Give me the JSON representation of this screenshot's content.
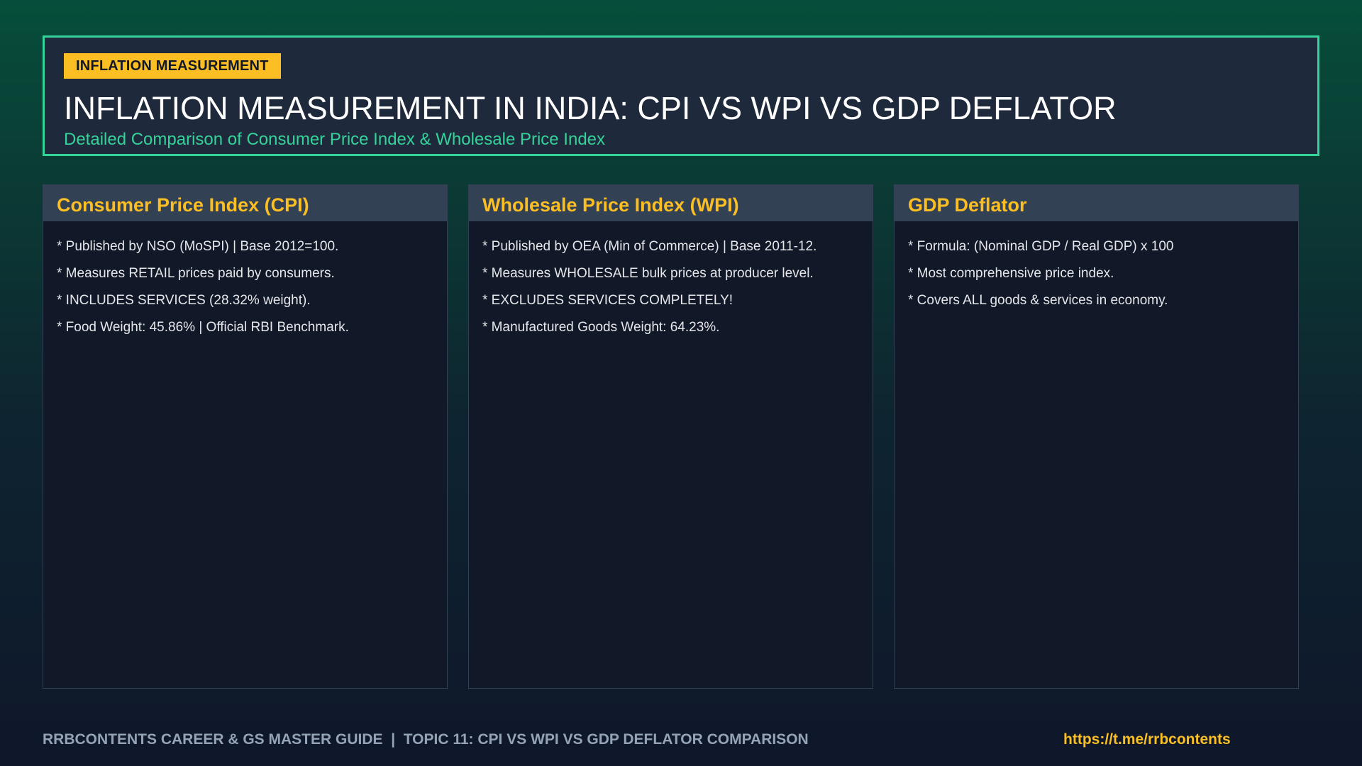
{
  "header": {
    "tag": "INFLATION MEASUREMENT",
    "title": "INFLATION MEASUREMENT IN INDIA: CPI VS WPI VS GDP DEFLATOR",
    "subtitle": "Detailed Comparison of Consumer Price Index & Wholesale Price Index"
  },
  "cards": [
    {
      "title": "Consumer Price Index (CPI)",
      "points": [
        "* Published by NSO (MoSPI) | Base 2012=100.",
        "* Measures RETAIL prices paid by consumers.",
        "* INCLUDES SERVICES (28.32% weight).",
        "* Food Weight: 45.86% | Official RBI Benchmark."
      ]
    },
    {
      "title": "Wholesale Price Index (WPI)",
      "points": [
        "* Published by OEA (Min of Commerce) | Base 2011-12.",
        "* Measures WHOLESALE bulk prices at producer level.",
        "* EXCLUDES SERVICES COMPLETELY!",
        "* Manufactured Goods Weight: 64.23%."
      ]
    },
    {
      "title": "GDP Deflator",
      "points": [
        "* Formula: (Nominal GDP / Real GDP) x 100",
        "* Most comprehensive price index.",
        "* Covers ALL goods & services in economy."
      ]
    }
  ],
  "footer": {
    "left": "RRBCONTENTS CAREER & GS MASTER GUIDE  |  TOPIC 11: CPI VS WPI VS GDP DEFLATOR COMPARISON",
    "link": "https://t.me/rrbcontents"
  },
  "colors": {
    "accent_green": "#34d399",
    "accent_yellow": "#fbbf24",
    "panel_dark": "#111827",
    "panel_header": "#334155"
  }
}
